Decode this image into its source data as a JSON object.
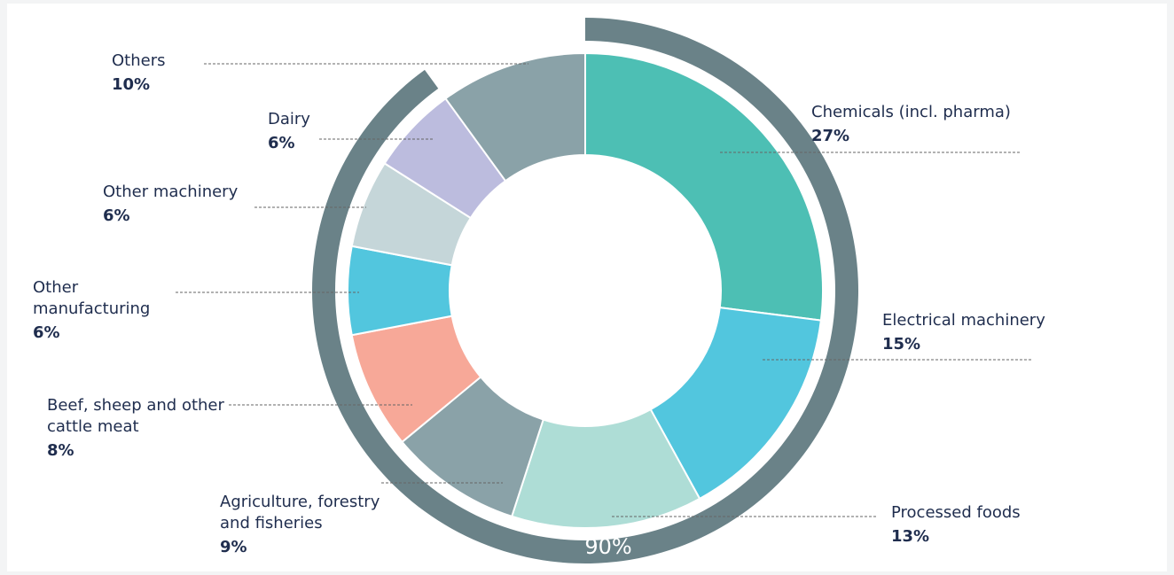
{
  "chart_data": {
    "type": "donut",
    "categories": [
      "Chemicals (incl. pharma)",
      "Electrical machinery",
      "Processed foods",
      "Agriculture, forestry and fisheries",
      "Beef, sheep and other cattle meat",
      "Other manufacturing",
      "Other machinery",
      "Dairy",
      "Others"
    ],
    "values": [
      27,
      15,
      13,
      9,
      8,
      6,
      6,
      6,
      10
    ],
    "value_labels": [
      "27%",
      "15%",
      "13%",
      "9%",
      "8%",
      "6%",
      "6%",
      "6%",
      "10%"
    ],
    "colors": [
      "#4dbfb4",
      "#52c6de",
      "#aeddd6",
      "#8aa2a8",
      "#f7a898",
      "#52c6de",
      "#c5d6d9",
      "#bcbcde",
      "#8aa2a8"
    ],
    "outer_ring": {
      "value": 90,
      "label": "90%",
      "color": "#6a8288"
    }
  }
}
